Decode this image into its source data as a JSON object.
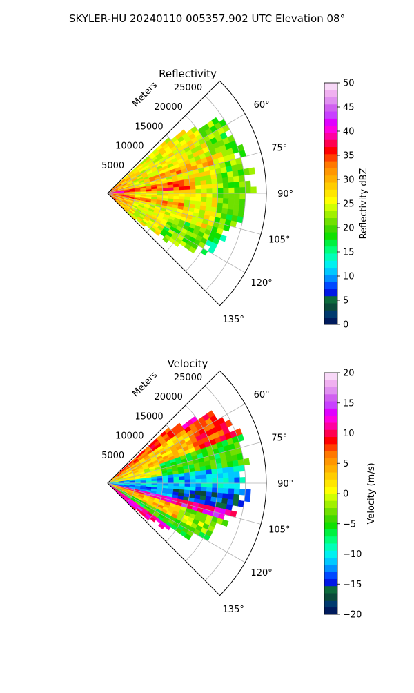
{
  "figure": {
    "suptitle": "SKYLER-HU  20240110  005357.902 UTC Elevation 08°"
  },
  "chart_data": [
    {
      "type": "heatmap",
      "title": "Reflectivity",
      "projection": "polar sector (PPI)",
      "azimuth_range_deg": [
        45,
        135
      ],
      "range_label": "Meters",
      "radial_ticks": [
        "5000",
        "10000",
        "15000",
        "20000",
        "25000"
      ],
      "radial_tick_values": [
        5000,
        10000,
        15000,
        20000,
        25000
      ],
      "azimuth_ticks": [
        "60°",
        "75°",
        "90°",
        "105°",
        "120°",
        "135°"
      ],
      "azimuth_tick_values": [
        60,
        75,
        90,
        105,
        120,
        135
      ],
      "grid": true,
      "colorbar": {
        "label": "Reflectivity dBZ",
        "range": [
          0,
          50
        ],
        "ticks": [
          "0",
          "5",
          "10",
          "15",
          "20",
          "25",
          "30",
          "35",
          "40",
          "45",
          "50"
        ],
        "tick_values": [
          0,
          5,
          10,
          15,
          20,
          25,
          30,
          35,
          40,
          45,
          50
        ],
        "colors": [
          "#001a5c",
          "#003a6e",
          "#0b4a3a",
          "#0d6b3c",
          "#0019e6",
          "#0049ff",
          "#0090ff",
          "#00c8ff",
          "#00f0f0",
          "#00ffb8",
          "#00ff7a",
          "#00f040",
          "#10e000",
          "#40d800",
          "#70e000",
          "#a0f000",
          "#d0ff00",
          "#ffff00",
          "#ffe600",
          "#ffcc00",
          "#ffb000",
          "#ff9600",
          "#ff7800",
          "#ff4000",
          "#ff0000",
          "#ff0050",
          "#ff00a0",
          "#ff00e0",
          "#e000ff",
          "#c840ff",
          "#d060f0",
          "#e090f0",
          "#f0b0f0",
          "#f8d8f8"
        ]
      },
      "field_summary": {
        "dominant_range": [
          20,
          35
        ],
        "max_near_radar": 40,
        "edge_values": [
          18,
          24
        ]
      }
    },
    {
      "type": "heatmap",
      "title": "Velocity",
      "projection": "polar sector (PPI)",
      "azimuth_range_deg": [
        45,
        135
      ],
      "range_label": "Meters",
      "radial_ticks": [
        "5000",
        "10000",
        "15000",
        "20000",
        "25000"
      ],
      "radial_tick_values": [
        5000,
        10000,
        15000,
        20000,
        25000
      ],
      "azimuth_ticks": [
        "60°",
        "75°",
        "90°",
        "105°",
        "120°",
        "135°"
      ],
      "azimuth_tick_values": [
        60,
        75,
        90,
        105,
        120,
        135
      ],
      "grid": true,
      "colorbar": {
        "label": "Velocity (m/s)",
        "range": [
          -20,
          20
        ],
        "ticks": [
          "−20",
          "−15",
          "−10",
          "−5",
          "0",
          "5",
          "10",
          "15",
          "20"
        ],
        "tick_values": [
          -20,
          -15,
          -10,
          -5,
          0,
          5,
          10,
          15,
          20
        ],
        "colors": [
          "#001a5c",
          "#003a6e",
          "#0b4a3a",
          "#0d6b3c",
          "#0019e6",
          "#0049ff",
          "#0090ff",
          "#00c8ff",
          "#00f0f0",
          "#00ffb8",
          "#00ff7a",
          "#00f040",
          "#10e000",
          "#40d800",
          "#70e000",
          "#a0f000",
          "#d0ff00",
          "#ffff00",
          "#ffe600",
          "#ffcc00",
          "#ffb000",
          "#ff9600",
          "#ff7800",
          "#ff4000",
          "#ff0000",
          "#ff0050",
          "#ff00a0",
          "#ff00e0",
          "#e000ff",
          "#c840ff",
          "#d060f0",
          "#e090f0",
          "#f0b0f0",
          "#f8d8f8"
        ]
      },
      "field_summary": {
        "band_north": [
          0,
          12
        ],
        "band_center": [
          -15,
          -8
        ],
        "band_south": [
          8,
          14
        ]
      }
    }
  ]
}
